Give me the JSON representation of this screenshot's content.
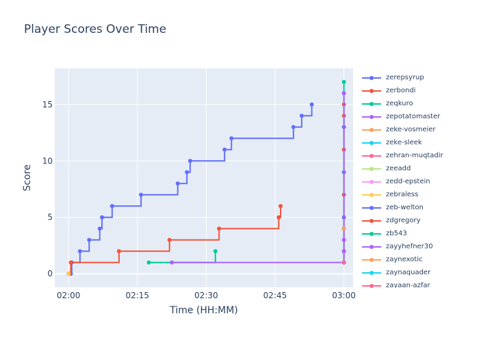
{
  "chart_data": {
    "type": "line",
    "line_shape": "step",
    "title": "Player Scores Over Time",
    "xlabel": "Time (HH:MM)",
    "ylabel": "Score",
    "x_unit": "minutes after 02:00",
    "xlim": [
      -3,
      62
    ],
    "ylim": [
      -1.2,
      18.2
    ],
    "x_ticks": [
      {
        "value": 0,
        "label": "02:00"
      },
      {
        "value": 15,
        "label": "02:15"
      },
      {
        "value": 30,
        "label": "02:30"
      },
      {
        "value": 45,
        "label": "02:45"
      },
      {
        "value": 60,
        "label": "03:00"
      }
    ],
    "y_ticks": [
      0,
      5,
      10,
      15
    ],
    "grid": true,
    "legend_position": "right",
    "series": [
      {
        "name": "zerepsyrup",
        "color": "#636efa",
        "points": [
          [
            0.5,
            0
          ],
          [
            0.7,
            1
          ],
          [
            2.5,
            2
          ],
          [
            4.5,
            3
          ],
          [
            6.8,
            4
          ],
          [
            7.3,
            5
          ],
          [
            9.5,
            6
          ],
          [
            15.8,
            7
          ],
          [
            23.8,
            8
          ],
          [
            25.8,
            9
          ],
          [
            26.5,
            10
          ],
          [
            34,
            11
          ],
          [
            35.5,
            12
          ],
          [
            49,
            13
          ],
          [
            50.8,
            14
          ],
          [
            53,
            15
          ]
        ]
      },
      {
        "name": "zerbondi",
        "color": "#ef553b",
        "points": [
          [
            0.3,
            0
          ],
          [
            0.5,
            1
          ],
          [
            11,
            2
          ],
          [
            22,
            3
          ],
          [
            32.8,
            4
          ],
          [
            45.8,
            5
          ],
          [
            46.2,
            6
          ]
        ]
      },
      {
        "name": "zeqkuro",
        "color": "#00cc96",
        "points": [
          [
            17.5,
            1
          ],
          [
            32,
            2
          ]
        ]
      },
      {
        "name": "zepotatomaster",
        "color": "#ab63fa",
        "points": [
          [
            22.5,
            1
          ],
          [
            60,
            1
          ]
        ]
      },
      {
        "name": "zeke-vosmeier",
        "color": "#ffa15a",
        "points": [
          [
            0,
            0
          ]
        ]
      },
      {
        "name": "zeke-sleek",
        "color": "#19d3f3",
        "points": [
          [
            0,
            0
          ]
        ]
      },
      {
        "name": "zehran-muqtadir",
        "color": "#ff6692",
        "points": [
          [
            60,
            1
          ]
        ]
      },
      {
        "name": "zeeadd",
        "color": "#b6e880",
        "points": [
          [
            60,
            4
          ]
        ]
      },
      {
        "name": "zedd-epstein",
        "color": "#ff97ff",
        "points": [
          [
            60,
            3
          ]
        ]
      },
      {
        "name": "zebraless",
        "color": "#fecb52",
        "points": [
          [
            0,
            0
          ]
        ]
      },
      {
        "name": "zeb-welton",
        "color": "#636efa",
        "points": [
          [
            60,
            1
          ],
          [
            60,
            2
          ],
          [
            60,
            5
          ],
          [
            60,
            9
          ],
          [
            60,
            13
          ],
          [
            60,
            16
          ]
        ]
      },
      {
        "name": "zdgregory",
        "color": "#ef553b",
        "points": [
          [
            60,
            1
          ],
          [
            60,
            4
          ],
          [
            60,
            7
          ],
          [
            60,
            11
          ],
          [
            60,
            14
          ],
          [
            60,
            15
          ]
        ]
      },
      {
        "name": "zb543",
        "color": "#00cc96",
        "points": [
          [
            60,
            1
          ],
          [
            60,
            17
          ]
        ]
      },
      {
        "name": "zayyhefner30",
        "color": "#ab63fa",
        "points": [
          [
            60,
            1
          ],
          [
            60,
            2
          ],
          [
            60,
            3
          ],
          [
            60,
            4
          ],
          [
            60,
            16
          ]
        ]
      },
      {
        "name": "zaynexotic",
        "color": "#ffa15a",
        "points": [
          [
            60,
            4
          ]
        ]
      },
      {
        "name": "zaynaquader",
        "color": "#19d3f3",
        "points": [
          [
            60,
            1
          ]
        ]
      },
      {
        "name": "zayaan-azfar",
        "color": "#ff6692",
        "points": [
          [
            60,
            1
          ]
        ]
      }
    ]
  }
}
